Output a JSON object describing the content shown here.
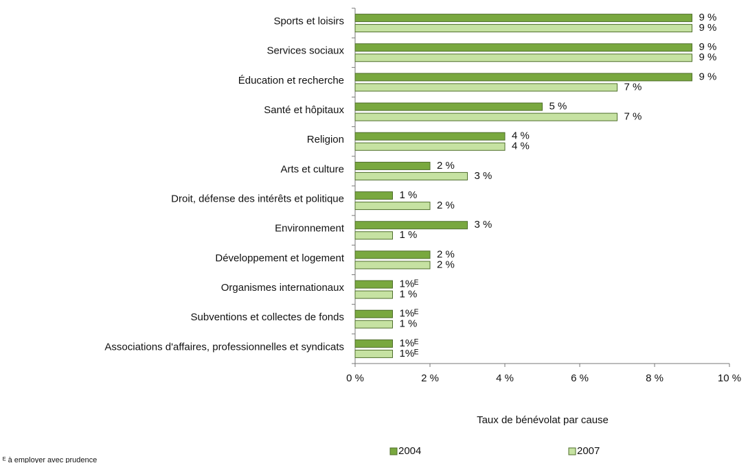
{
  "chart_data": {
    "type": "bar",
    "orientation": "horizontal",
    "categories": [
      "Sports et loisirs",
      "Services sociaux",
      "Éducation et recherche",
      "Santé et hôpitaux",
      "Religion",
      "Arts et culture",
      "Droit, défense des intérêts et politique",
      "Environnement",
      "Développement et logement",
      "Organismes internationaux",
      "Subventions et collectes de fonds",
      "Associations d'affaires, professionnelles et syndicats"
    ],
    "series": [
      {
        "name": "2004",
        "color": "#79a83f",
        "values": [
          9,
          9,
          9,
          5,
          4,
          2,
          1,
          3,
          2,
          1,
          1,
          1
        ],
        "value_labels": [
          "9 %",
          "9 %",
          "9 %",
          "5 %",
          "4 %",
          "2 %",
          "1 %",
          "3 %",
          "2 %",
          "1%ᴱ",
          "1%ᴱ",
          "1%ᴱ"
        ]
      },
      {
        "name": "2007",
        "color": "#c6e2a2",
        "values": [
          9,
          9,
          7,
          7,
          4,
          3,
          2,
          1,
          2,
          1,
          1,
          1
        ],
        "value_labels": [
          "9 %",
          "9 %",
          "7 %",
          "7 %",
          "4 %",
          "3 %",
          "2 %",
          "1 %",
          "2 %",
          "1 %",
          "1 %",
          "1%ᴱ"
        ]
      }
    ],
    "xlim": [
      0,
      10
    ],
    "xticks": [
      {
        "value": 0,
        "label": "0 %"
      },
      {
        "value": 2,
        "label": "2 %"
      },
      {
        "value": 4,
        "label": "4 %"
      },
      {
        "value": 6,
        "label": "6 %"
      },
      {
        "value": 8,
        "label": "8 %"
      },
      {
        "value": 10,
        "label": "10 %"
      }
    ],
    "x_label": "Taux de bénévolat par cause",
    "legend": "bottom",
    "footnote": "ᴱ à employer avec prudence"
  }
}
